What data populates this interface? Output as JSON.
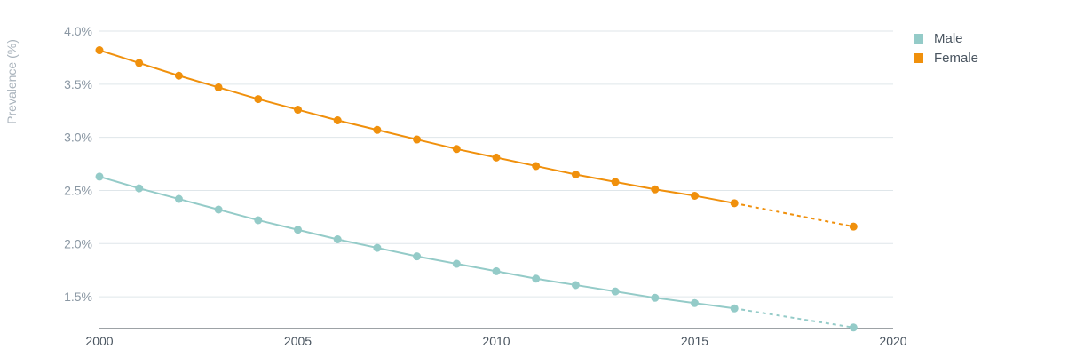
{
  "chart_data": {
    "type": "line",
    "title": "",
    "xlabel": "",
    "ylabel": "Prevalence (%)",
    "xlim": [
      2000,
      2020
    ],
    "ylim": [
      1.2,
      4.0
    ],
    "x_ticks": [
      2000,
      2005,
      2010,
      2015,
      2020
    ],
    "x_tick_labels": [
      "2000",
      "2005",
      "2010",
      "2015",
      "2020"
    ],
    "y_ticks": [
      1.5,
      2.0,
      2.5,
      3.0,
      3.5,
      4.0
    ],
    "y_tick_labels": [
      "1.5%",
      "2.0%",
      "2.5%",
      "3.0%",
      "3.5%",
      "4.0%"
    ],
    "grid": true,
    "legend_position": "top-right",
    "series": [
      {
        "name": "Male",
        "color": "#94cbc8",
        "points": [
          [
            2000,
            2.63
          ],
          [
            2001,
            2.52
          ],
          [
            2002,
            2.42
          ],
          [
            2003,
            2.32
          ],
          [
            2004,
            2.22
          ],
          [
            2005,
            2.13
          ],
          [
            2006,
            2.04
          ],
          [
            2007,
            1.96
          ],
          [
            2008,
            1.88
          ],
          [
            2009,
            1.81
          ],
          [
            2010,
            1.74
          ],
          [
            2011,
            1.67
          ],
          [
            2012,
            1.61
          ],
          [
            2013,
            1.55
          ],
          [
            2014,
            1.49
          ],
          [
            2015,
            1.44
          ],
          [
            2016,
            1.39
          ],
          [
            2019,
            1.21
          ]
        ],
        "projected_from": 2016
      },
      {
        "name": "Female",
        "color": "#f0900c",
        "points": [
          [
            2000,
            3.82
          ],
          [
            2001,
            3.7
          ],
          [
            2002,
            3.58
          ],
          [
            2003,
            3.47
          ],
          [
            2004,
            3.36
          ],
          [
            2005,
            3.26
          ],
          [
            2006,
            3.16
          ],
          [
            2007,
            3.07
          ],
          [
            2008,
            2.98
          ],
          [
            2009,
            2.89
          ],
          [
            2010,
            2.81
          ],
          [
            2011,
            2.73
          ],
          [
            2012,
            2.65
          ],
          [
            2013,
            2.58
          ],
          [
            2014,
            2.51
          ],
          [
            2015,
            2.45
          ],
          [
            2016,
            2.38
          ],
          [
            2019,
            2.16
          ]
        ],
        "projected_from": 2016
      }
    ]
  }
}
